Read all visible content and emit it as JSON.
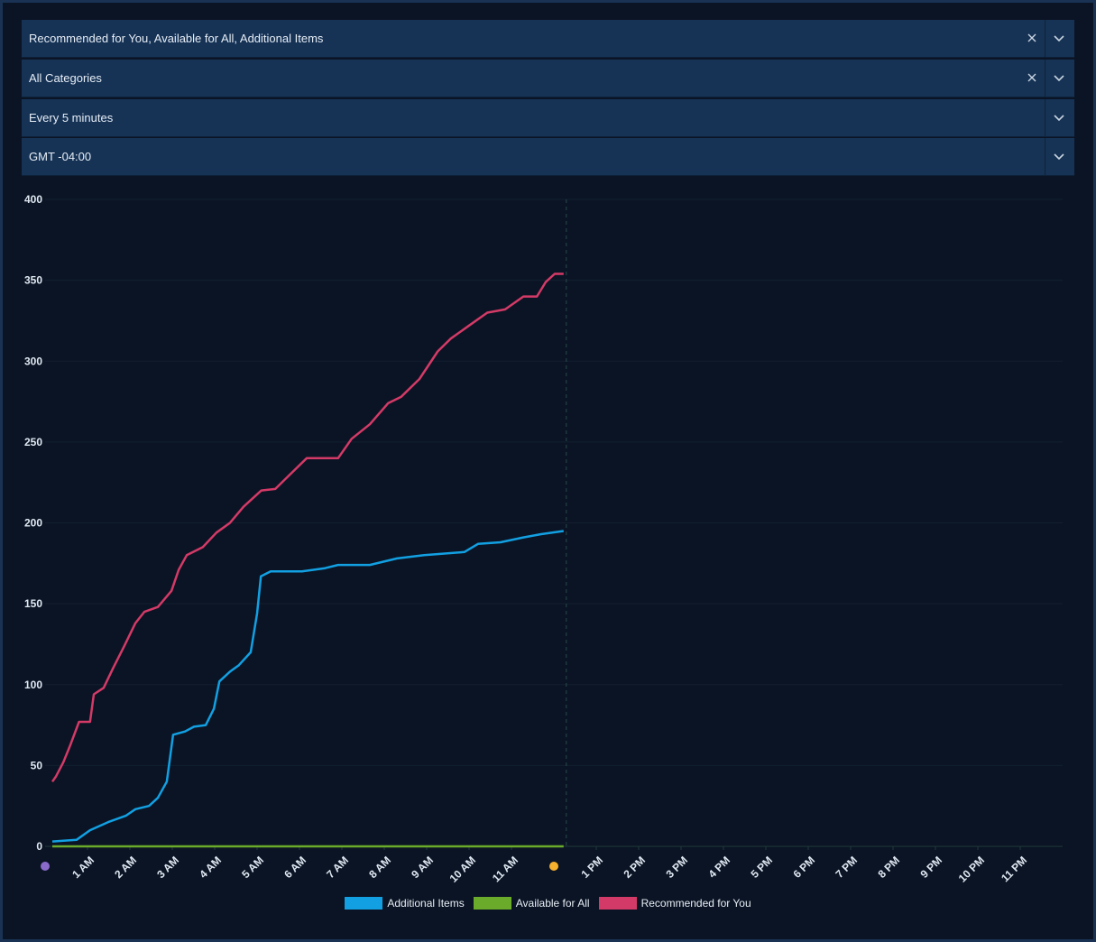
{
  "filters": [
    "Recommended for You, Available for All, Additional Items",
    "All Categories",
    "Every 5 minutes",
    "GMT -04:00"
  ],
  "chart_data": {
    "type": "line",
    "xlim": [
      0,
      24
    ],
    "ylim": [
      0,
      400
    ],
    "yticks": [
      0,
      50,
      100,
      150,
      200,
      250,
      300,
      350,
      400
    ],
    "grid": true,
    "icon_ticks": [
      0,
      12
    ],
    "xticks": [
      {
        "value": 1,
        "label": "1 AM"
      },
      {
        "value": 2,
        "label": "2 AM"
      },
      {
        "value": 3,
        "label": "3 AM"
      },
      {
        "value": 4,
        "label": "4 AM"
      },
      {
        "value": 5,
        "label": "5 AM"
      },
      {
        "value": 6,
        "label": "6 AM"
      },
      {
        "value": 7,
        "label": "7 AM"
      },
      {
        "value": 8,
        "label": "8 AM"
      },
      {
        "value": 9,
        "label": "9 AM"
      },
      {
        "value": 10,
        "label": "10 AM"
      },
      {
        "value": 11,
        "label": "11 AM"
      },
      {
        "value": 13,
        "label": "1 PM"
      },
      {
        "value": 14,
        "label": "2 PM"
      },
      {
        "value": 15,
        "label": "3 PM"
      },
      {
        "value": 16,
        "label": "4 PM"
      },
      {
        "value": 17,
        "label": "5 PM"
      },
      {
        "value": 18,
        "label": "6 PM"
      },
      {
        "value": 19,
        "label": "7 PM"
      },
      {
        "value": 20,
        "label": "8 PM"
      },
      {
        "value": 21,
        "label": "9 PM"
      },
      {
        "value": 22,
        "label": "10 PM"
      },
      {
        "value": 23,
        "label": "11 PM"
      }
    ],
    "series": [
      {
        "name": "Additional Items",
        "color": "#12a0e3",
        "x": [
          0.17,
          0.74,
          1.06,
          1.49,
          1.91,
          2.13,
          2.45,
          2.66,
          2.87,
          3.02,
          3.3,
          3.51,
          3.79,
          3.98,
          4.11,
          4.36,
          4.57,
          4.85,
          5.0,
          5.09,
          5.32,
          6.06,
          6.6,
          6.91,
          7.66,
          8.3,
          8.94,
          9.89,
          10.21,
          10.74,
          11.28,
          11.7,
          12.23
        ],
        "values": [
          3,
          4,
          10,
          15,
          19,
          23,
          25,
          30,
          40,
          69,
          71,
          74,
          75,
          85,
          102,
          108,
          112,
          120,
          144,
          167,
          170,
          170,
          172,
          174,
          174,
          178,
          180,
          182,
          187,
          188,
          191,
          193,
          195
        ]
      },
      {
        "name": "Available for All",
        "color": "#6aab2b",
        "x": [
          0.17,
          3,
          6,
          9,
          12.23
        ],
        "values": [
          0,
          0,
          0,
          0,
          0
        ]
      },
      {
        "name": "Recommended for You",
        "color": "#d43a67",
        "x": [
          0.17,
          0.25,
          0.43,
          0.6,
          0.8,
          1.06,
          1.15,
          1.38,
          1.6,
          1.87,
          2.13,
          2.34,
          2.66,
          2.98,
          3.15,
          3.34,
          3.72,
          4.04,
          4.36,
          4.68,
          5.1,
          5.43,
          5.74,
          6.17,
          6.91,
          7.23,
          7.66,
          8.09,
          8.4,
          8.83,
          9.26,
          9.57,
          10.0,
          10.43,
          10.85,
          11.28,
          11.6,
          11.81,
          12.02,
          12.23
        ],
        "values": [
          40,
          43,
          52,
          63,
          77,
          77,
          94,
          98,
          110,
          124,
          138,
          145,
          148,
          158,
          171,
          180,
          185,
          194,
          200,
          210,
          220,
          221,
          229,
          240,
          240,
          252,
          261,
          274,
          278,
          289,
          306,
          314,
          322,
          330,
          332,
          340,
          340,
          349,
          354,
          354
        ]
      }
    ]
  }
}
